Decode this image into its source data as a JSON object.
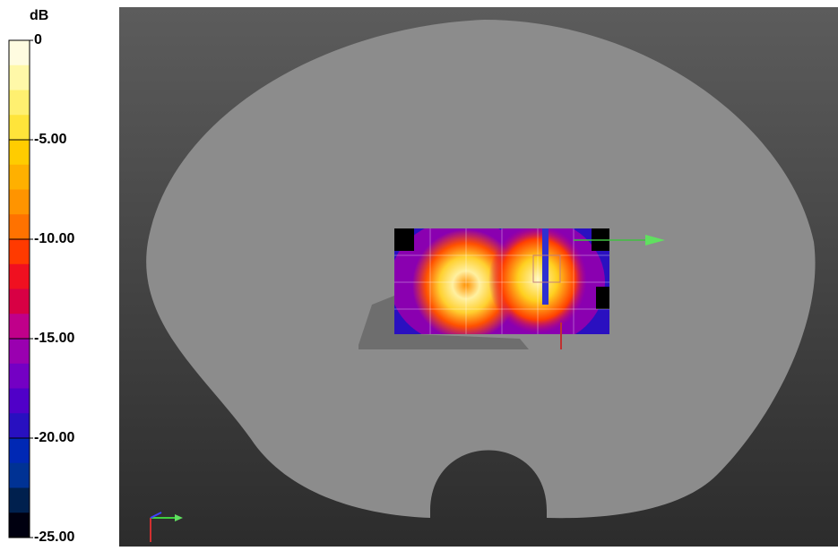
{
  "legend": {
    "unit": "dB",
    "ticks": [
      0,
      {
        "value": -5,
        "label": "-5.00"
      },
      {
        "value": -10,
        "label": "-10.00"
      },
      {
        "value": -15,
        "label": "-15.00"
      },
      {
        "value": -20,
        "label": "-20.00"
      },
      {
        "value": -25,
        "label": "-25.00"
      }
    ],
    "colors": [
      "#fffce0",
      "#fff8a8",
      "#fff070",
      "#ffe43a",
      "#ffcc00",
      "#ffb000",
      "#ff9400",
      "#ff7200",
      "#ff3a00",
      "#f01020",
      "#d80044",
      "#c0008a",
      "#9a00b0",
      "#7400c4",
      "#5000c8",
      "#2810c0",
      "#0028b4",
      "#003294",
      "#00204e",
      "#000010"
    ]
  }
}
